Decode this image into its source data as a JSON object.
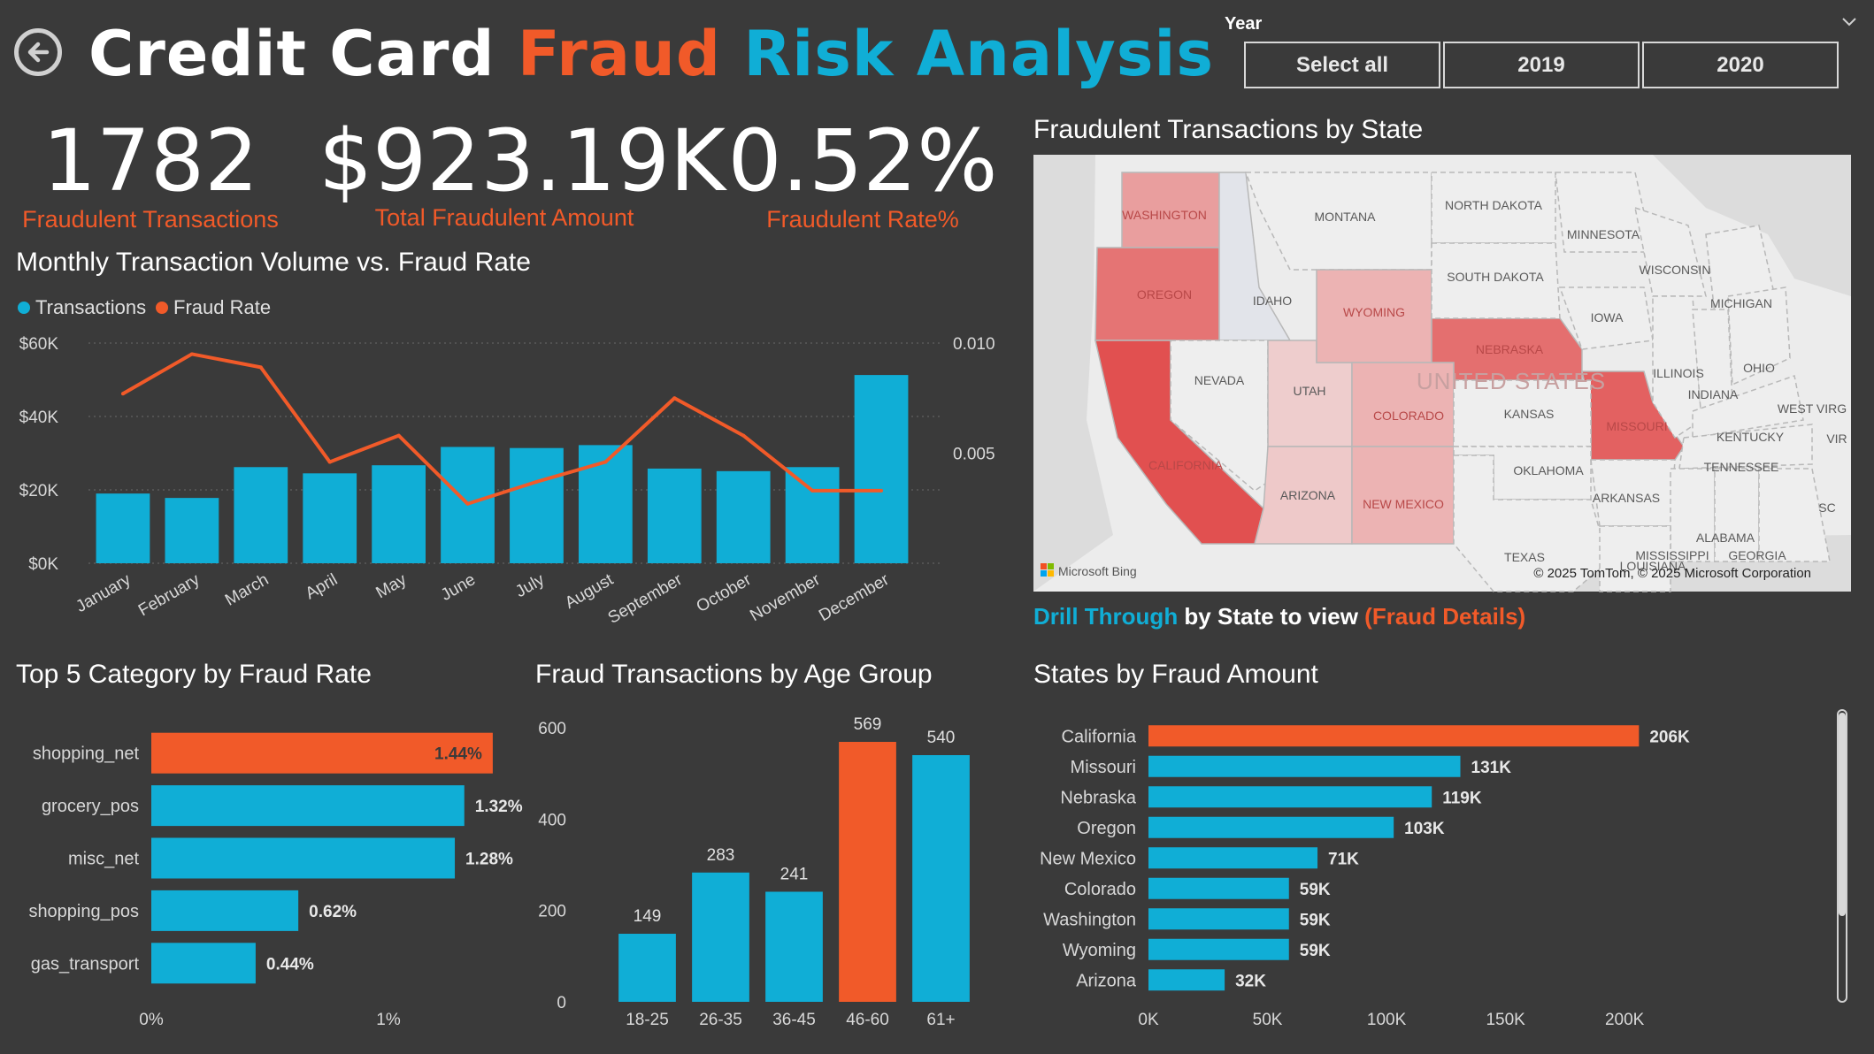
{
  "header": {
    "title_part1": "Credit Card",
    "title_part2": "Fraud",
    "title_part3": "Risk Analysis",
    "back_icon": "back-arrow-icon"
  },
  "slicer": {
    "label": "Year",
    "options": [
      "Select all",
      "2019",
      "2020"
    ]
  },
  "kpis": [
    {
      "value": "1782",
      "label": "Fraudulent Transactions"
    },
    {
      "value": "$923.19K",
      "label": "Total Fraudulent Amount"
    },
    {
      "value": "0.52%",
      "label": "Fraudulent Rate%"
    }
  ],
  "colors": {
    "background": "#3a3a3a",
    "blue": "#10aed6",
    "orange": "#f15a29"
  },
  "drill": {
    "part1": "Drill Through",
    "part2": " by State to view ",
    "part3": "(Fraud Details)"
  },
  "chart_data": [
    {
      "id": "monthly",
      "type": "bar",
      "title": "Monthly Transaction Volume vs. Fraud Rate",
      "categories": [
        "January",
        "February",
        "March",
        "April",
        "May",
        "June",
        "July",
        "August",
        "September",
        "October",
        "November",
        "December"
      ],
      "series": [
        {
          "name": "Transactions",
          "type": "bar",
          "axis": "left",
          "values": [
            19000,
            17800,
            26200,
            24500,
            26700,
            31700,
            31400,
            32200,
            25800,
            25100,
            26200,
            51300
          ]
        },
        {
          "name": "Fraud Rate",
          "type": "line",
          "axis": "right",
          "values": [
            0.0077,
            0.0095,
            0.0089,
            0.0046,
            0.0058,
            0.0027,
            0.0037,
            0.0046,
            0.0075,
            0.0058,
            0.0033,
            0.0033
          ]
        }
      ],
      "ylim": [
        0,
        60000
      ],
      "y2lim": [
        0,
        0.01
      ],
      "yticks": [
        "$0K",
        "$20K",
        "$40K",
        "$60K"
      ],
      "y2ticks": [
        "0.005",
        "0.010"
      ],
      "legend": "top-left",
      "grid": true
    },
    {
      "id": "category",
      "type": "bar",
      "title": "Top 5 Category by Fraud Rate",
      "categories": [
        "shopping_net",
        "grocery_pos",
        "misc_net",
        "shopping_pos",
        "gas_transport"
      ],
      "values": [
        1.44,
        1.32,
        1.28,
        0.62,
        0.44
      ],
      "labels": [
        "1.44%",
        "1.32%",
        "1.28%",
        "0.62%",
        "0.44%"
      ],
      "xlim": [
        0,
        1.5
      ],
      "xticks": [
        "0%",
        "1%"
      ],
      "highlight": "shopping_net"
    },
    {
      "id": "age",
      "type": "bar",
      "title": "Fraud Transactions by Age Group",
      "categories": [
        "18-25",
        "26-35",
        "36-45",
        "46-60",
        "61+"
      ],
      "values": [
        149,
        283,
        241,
        569,
        540
      ],
      "ylim": [
        0,
        600
      ],
      "yticks": [
        "0",
        "200",
        "400",
        "600"
      ],
      "highlight": "46-60"
    },
    {
      "id": "states",
      "type": "bar",
      "title": "States by Fraud Amount",
      "categories": [
        "California",
        "Missouri",
        "Nebraska",
        "Oregon",
        "New Mexico",
        "Colorado",
        "Washington",
        "Wyoming",
        "Arizona"
      ],
      "values": [
        206,
        131,
        119,
        103,
        71,
        59,
        59,
        59,
        32
      ],
      "labels": [
        "206K",
        "131K",
        "119K",
        "103K",
        "71K",
        "59K",
        "59K",
        "59K",
        "32K"
      ],
      "xlim": [
        0,
        220
      ],
      "xticks": [
        "0K",
        "50K",
        "100K",
        "150K",
        "200K"
      ],
      "highlight": "California"
    }
  ],
  "map": {
    "title": "Fraudulent Transactions by State",
    "attribution": "© 2025 TomTom, © 2025 Microsoft Corporation",
    "logo": "Microsoft Bing",
    "country_label": "UNITED STATES",
    "states": [
      {
        "name": "WASHINGTON",
        "shade": 0.45
      },
      {
        "name": "OREGON",
        "shade": 0.75
      },
      {
        "name": "CALIFORNIA",
        "shade": 1.0
      },
      {
        "name": "IDAHO",
        "shade": 0.0
      },
      {
        "name": "NEVADA",
        "shade": -1
      },
      {
        "name": "UTAH",
        "shade": 0.12
      },
      {
        "name": "ARIZONA",
        "shade": 0.15
      },
      {
        "name": "MONTANA",
        "shade": -1
      },
      {
        "name": "WYOMING",
        "shade": 0.3
      },
      {
        "name": "COLORADO",
        "shade": 0.3
      },
      {
        "name": "NEW MEXICO",
        "shade": 0.3
      },
      {
        "name": "NEBRASKA",
        "shade": 0.78
      },
      {
        "name": "MISSOURI",
        "shade": 0.88
      },
      {
        "name": "NORTH DAKOTA",
        "shade": -1
      },
      {
        "name": "SOUTH DAKOTA",
        "shade": -1
      },
      {
        "name": "KANSAS",
        "shade": -1
      },
      {
        "name": "OKLAHOMA",
        "shade": -1
      },
      {
        "name": "TEXAS",
        "shade": -1
      },
      {
        "name": "MINNESOTA",
        "shade": -1
      },
      {
        "name": "IOWA",
        "shade": -1
      },
      {
        "name": "WISCONSIN",
        "shade": -1
      },
      {
        "name": "ILLINOIS",
        "shade": -1
      },
      {
        "name": "MICHIGAN",
        "shade": -1
      },
      {
        "name": "INDIANA",
        "shade": -1
      },
      {
        "name": "OHIO",
        "shade": -1
      },
      {
        "name": "KENTUCKY",
        "shade": -1
      },
      {
        "name": "TENNESSEE",
        "shade": -1
      },
      {
        "name": "ARKANSAS",
        "shade": -1
      },
      {
        "name": "MISSISSIPPI",
        "shade": -1
      },
      {
        "name": "ALABAMA",
        "shade": -1
      },
      {
        "name": "GEORGIA",
        "shade": -1
      },
      {
        "name": "LOUISIANA",
        "shade": -1
      },
      {
        "name": "WEST VIRG",
        "shade": -1
      },
      {
        "name": "VIR",
        "shade": -1
      },
      {
        "name": "SC",
        "shade": -1
      }
    ]
  }
}
